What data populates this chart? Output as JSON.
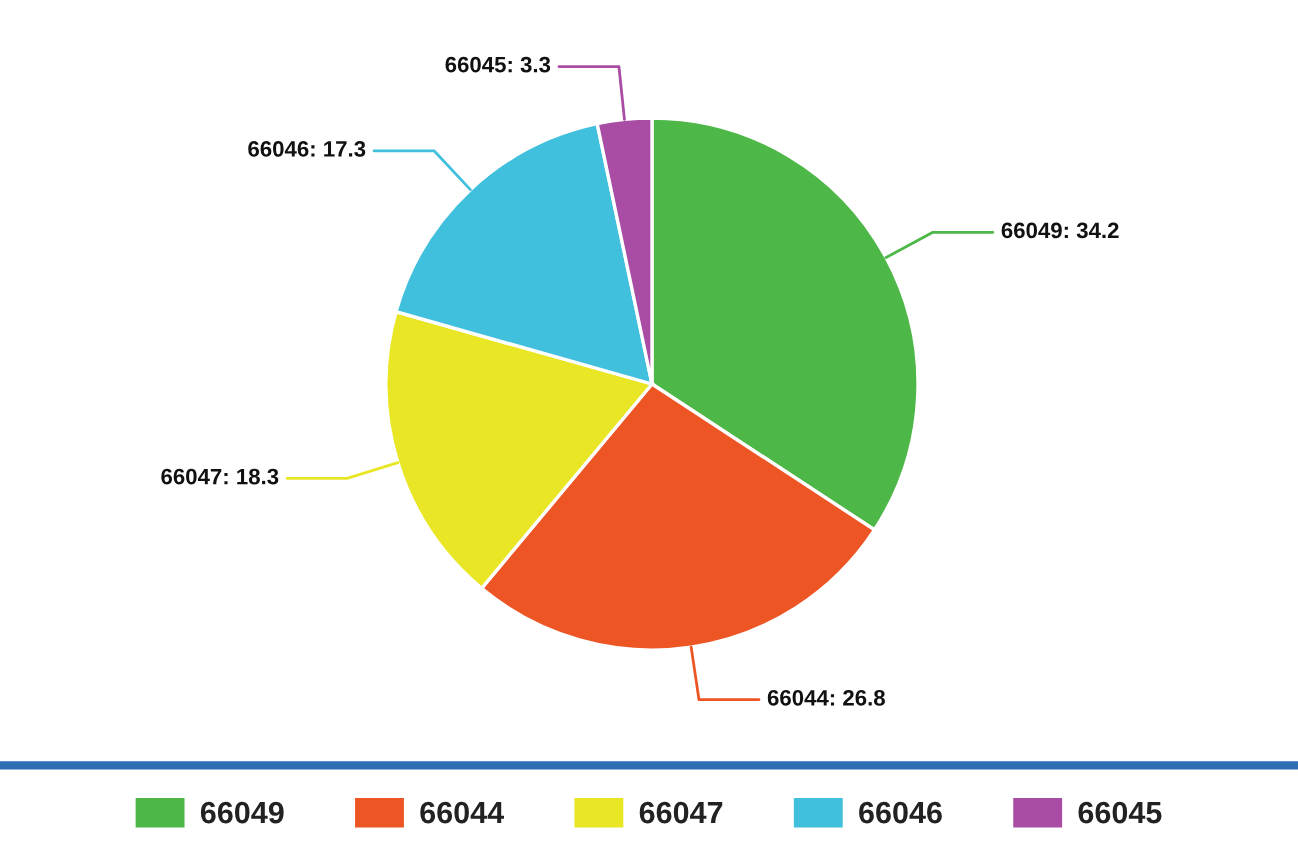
{
  "chart_data": {
    "type": "pie",
    "categories": [
      "66049",
      "66044",
      "66047",
      "66046",
      "66045"
    ],
    "values": [
      34.2,
      26.8,
      18.3,
      17.3,
      3.3
    ],
    "colors": [
      "#4db848",
      "#ee5524",
      "#e8e625",
      "#41c0de",
      "#a94ca3"
    ],
    "value_labels": [
      "66049: 34.2",
      "66044: 26.8",
      "66047: 18.3",
      "66046: 17.3",
      "66045: 3.3"
    ],
    "legend": "bottom"
  }
}
